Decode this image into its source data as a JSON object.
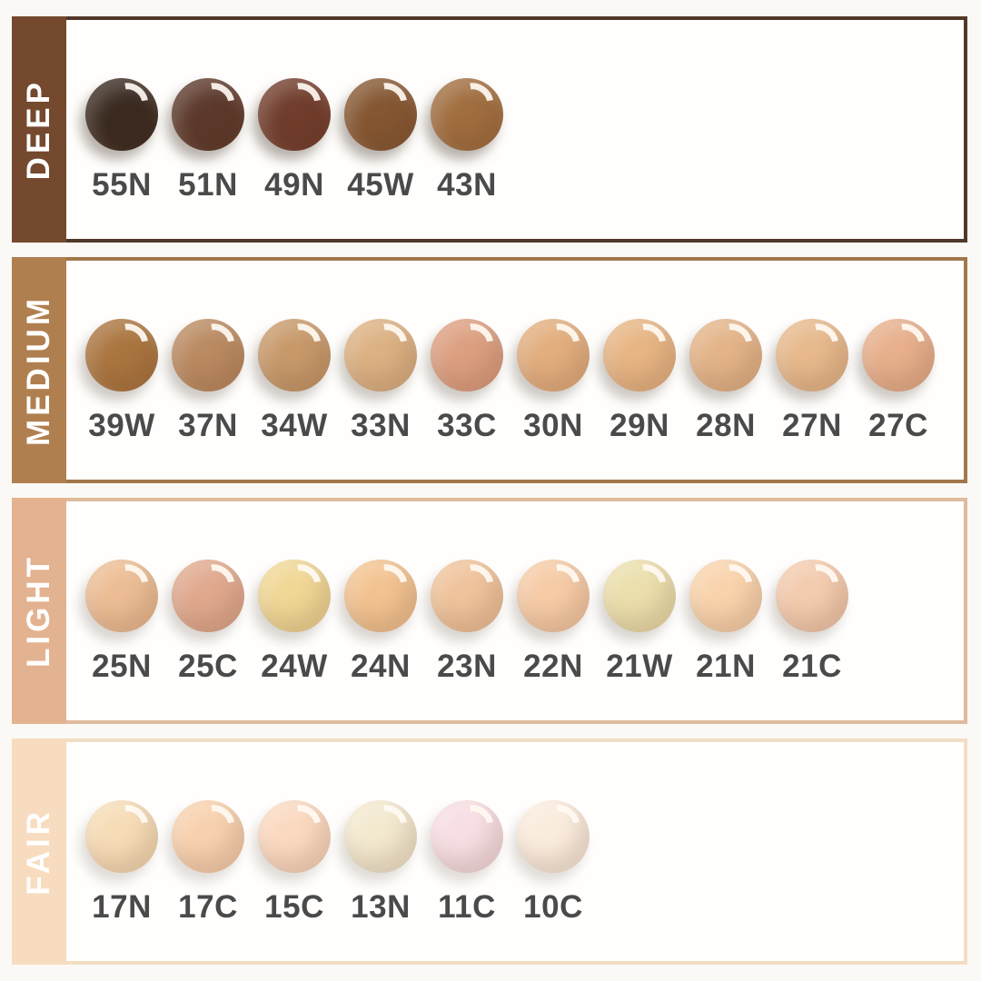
{
  "page": {
    "background_color": "#fbf9f5",
    "panel_background": "#fffefc",
    "code_text_color": "#4a4a4a",
    "bar_text_color": "#ffffff"
  },
  "rows": [
    {
      "label": "DEEP",
      "bar_color": "#74492e",
      "border_color": "#503829",
      "shades": [
        {
          "code": "55N",
          "color": "#3a2a20"
        },
        {
          "code": "51N",
          "color": "#5c392b"
        },
        {
          "code": "49N",
          "color": "#713d2c"
        },
        {
          "code": "45W",
          "color": "#855732"
        },
        {
          "code": "43N",
          "color": "#a06e3f"
        }
      ]
    },
    {
      "label": "MEDIUM",
      "bar_color": "#b07f4f",
      "border_color": "#a1774b",
      "shades": [
        {
          "code": "39W",
          "color": "#aa753f"
        },
        {
          "code": "37N",
          "color": "#ba8a61"
        },
        {
          "code": "34W",
          "color": "#c7996a"
        },
        {
          "code": "33N",
          "color": "#dcb183"
        },
        {
          "code": "33C",
          "color": "#dc9f80"
        },
        {
          "code": "30N",
          "color": "#e2ae7e"
        },
        {
          "code": "29N",
          "color": "#e7b584"
        },
        {
          "code": "28N",
          "color": "#e3b488"
        },
        {
          "code": "27N",
          "color": "#e7b98c"
        },
        {
          "code": "27C",
          "color": "#e7af8b"
        }
      ]
    },
    {
      "label": "LIGHT",
      "bar_color": "#e3b291",
      "border_color": "#dfba9d",
      "shades": [
        {
          "code": "25N",
          "color": "#ecbd94"
        },
        {
          "code": "25C",
          "color": "#e0a98e"
        },
        {
          "code": "24W",
          "color": "#f0d795"
        },
        {
          "code": "24N",
          "color": "#f2c391"
        },
        {
          "code": "23N",
          "color": "#efc39b"
        },
        {
          "code": "22N",
          "color": "#f6cba6"
        },
        {
          "code": "21W",
          "color": "#ebdfac"
        },
        {
          "code": "21N",
          "color": "#f9d3ac"
        },
        {
          "code": "21C",
          "color": "#f3cbae"
        }
      ]
    },
    {
      "label": "FAIR",
      "bar_color": "#f8dcbf",
      "border_color": "#f1dec3",
      "shades": [
        {
          "code": "17N",
          "color": "#f6dcb6"
        },
        {
          "code": "17C",
          "color": "#f7d1ae"
        },
        {
          "code": "15C",
          "color": "#fbd9c0"
        },
        {
          "code": "13N",
          "color": "#f3e9cf"
        },
        {
          "code": "11C",
          "color": "#f7dee3"
        },
        {
          "code": "10C",
          "color": "#faecdd"
        }
      ]
    }
  ]
}
